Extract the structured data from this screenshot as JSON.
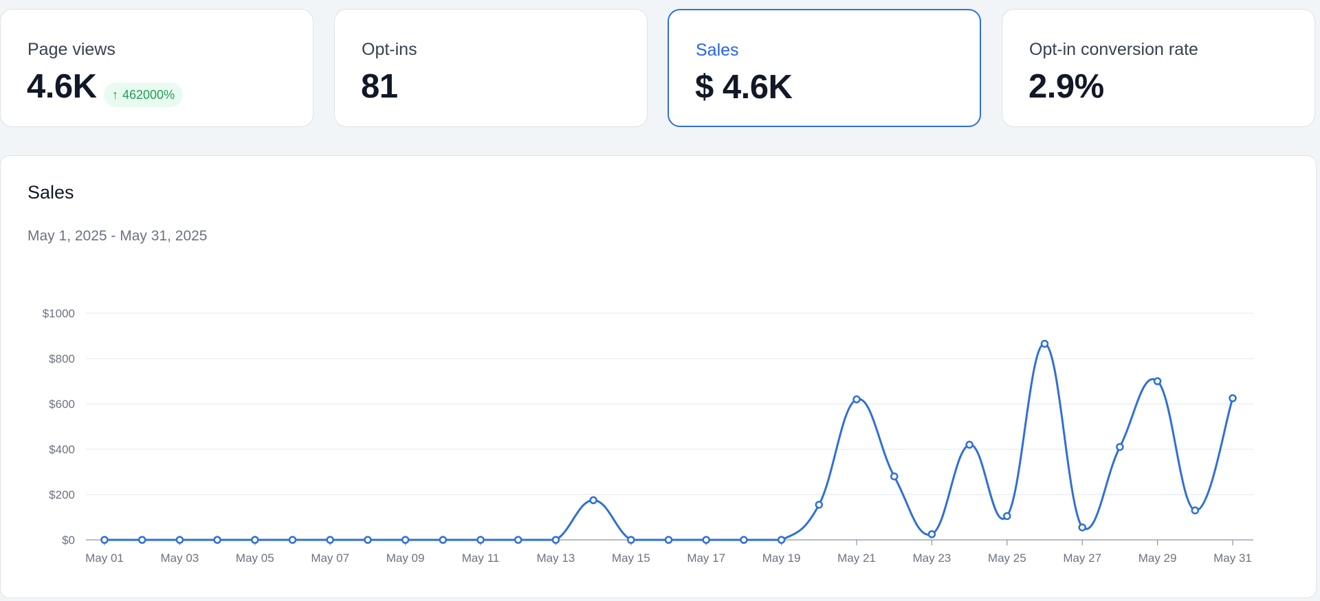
{
  "cards": [
    {
      "label": "Page views",
      "value": "4.6K",
      "badge": "462000%",
      "badge_icon": "arrow-up-icon"
    },
    {
      "label": "Opt-ins",
      "value": "81"
    },
    {
      "label": "Sales",
      "value": "$ 4.6K",
      "active": true
    },
    {
      "label": "Opt-in conversion rate",
      "value": "2.9%"
    }
  ],
  "panel": {
    "title": "Sales",
    "date_range": "May 1, 2025 - May 31, 2025"
  },
  "colors": {
    "accent": "#2f6fd8",
    "badge_text": "#1f9d55",
    "badge_bg": "#e9fbf1"
  },
  "chart_data": {
    "type": "line",
    "x": [
      "May 01",
      "May 02",
      "May 03",
      "May 04",
      "May 05",
      "May 06",
      "May 07",
      "May 08",
      "May 09",
      "May 10",
      "May 11",
      "May 12",
      "May 13",
      "May 14",
      "May 15",
      "May 16",
      "May 17",
      "May 18",
      "May 19",
      "May 20",
      "May 21",
      "May 22",
      "May 23",
      "May 24",
      "May 25",
      "May 26",
      "May 27",
      "May 28",
      "May 29",
      "May 30",
      "May 31"
    ],
    "x_tick_labels": [
      "May 01",
      "May 03",
      "May 05",
      "May 07",
      "May 09",
      "May 11",
      "May 13",
      "May 15",
      "May 17",
      "May 19",
      "May 21",
      "May 23",
      "May 25",
      "May 27",
      "May 29",
      "May 31"
    ],
    "values": [
      0,
      0,
      0,
      0,
      0,
      0,
      0,
      0,
      0,
      0,
      0,
      0,
      0,
      175,
      0,
      0,
      0,
      0,
      0,
      155,
      620,
      280,
      25,
      420,
      105,
      865,
      55,
      410,
      700,
      130,
      625
    ],
    "y_tick_labels": [
      "$0",
      "$200",
      "$400",
      "$600",
      "$800",
      "$1000"
    ],
    "y_ticks": [
      0,
      200,
      400,
      600,
      800,
      1000
    ],
    "ylim": [
      0,
      1000
    ],
    "grid": true,
    "smooth": true,
    "markers": true
  }
}
